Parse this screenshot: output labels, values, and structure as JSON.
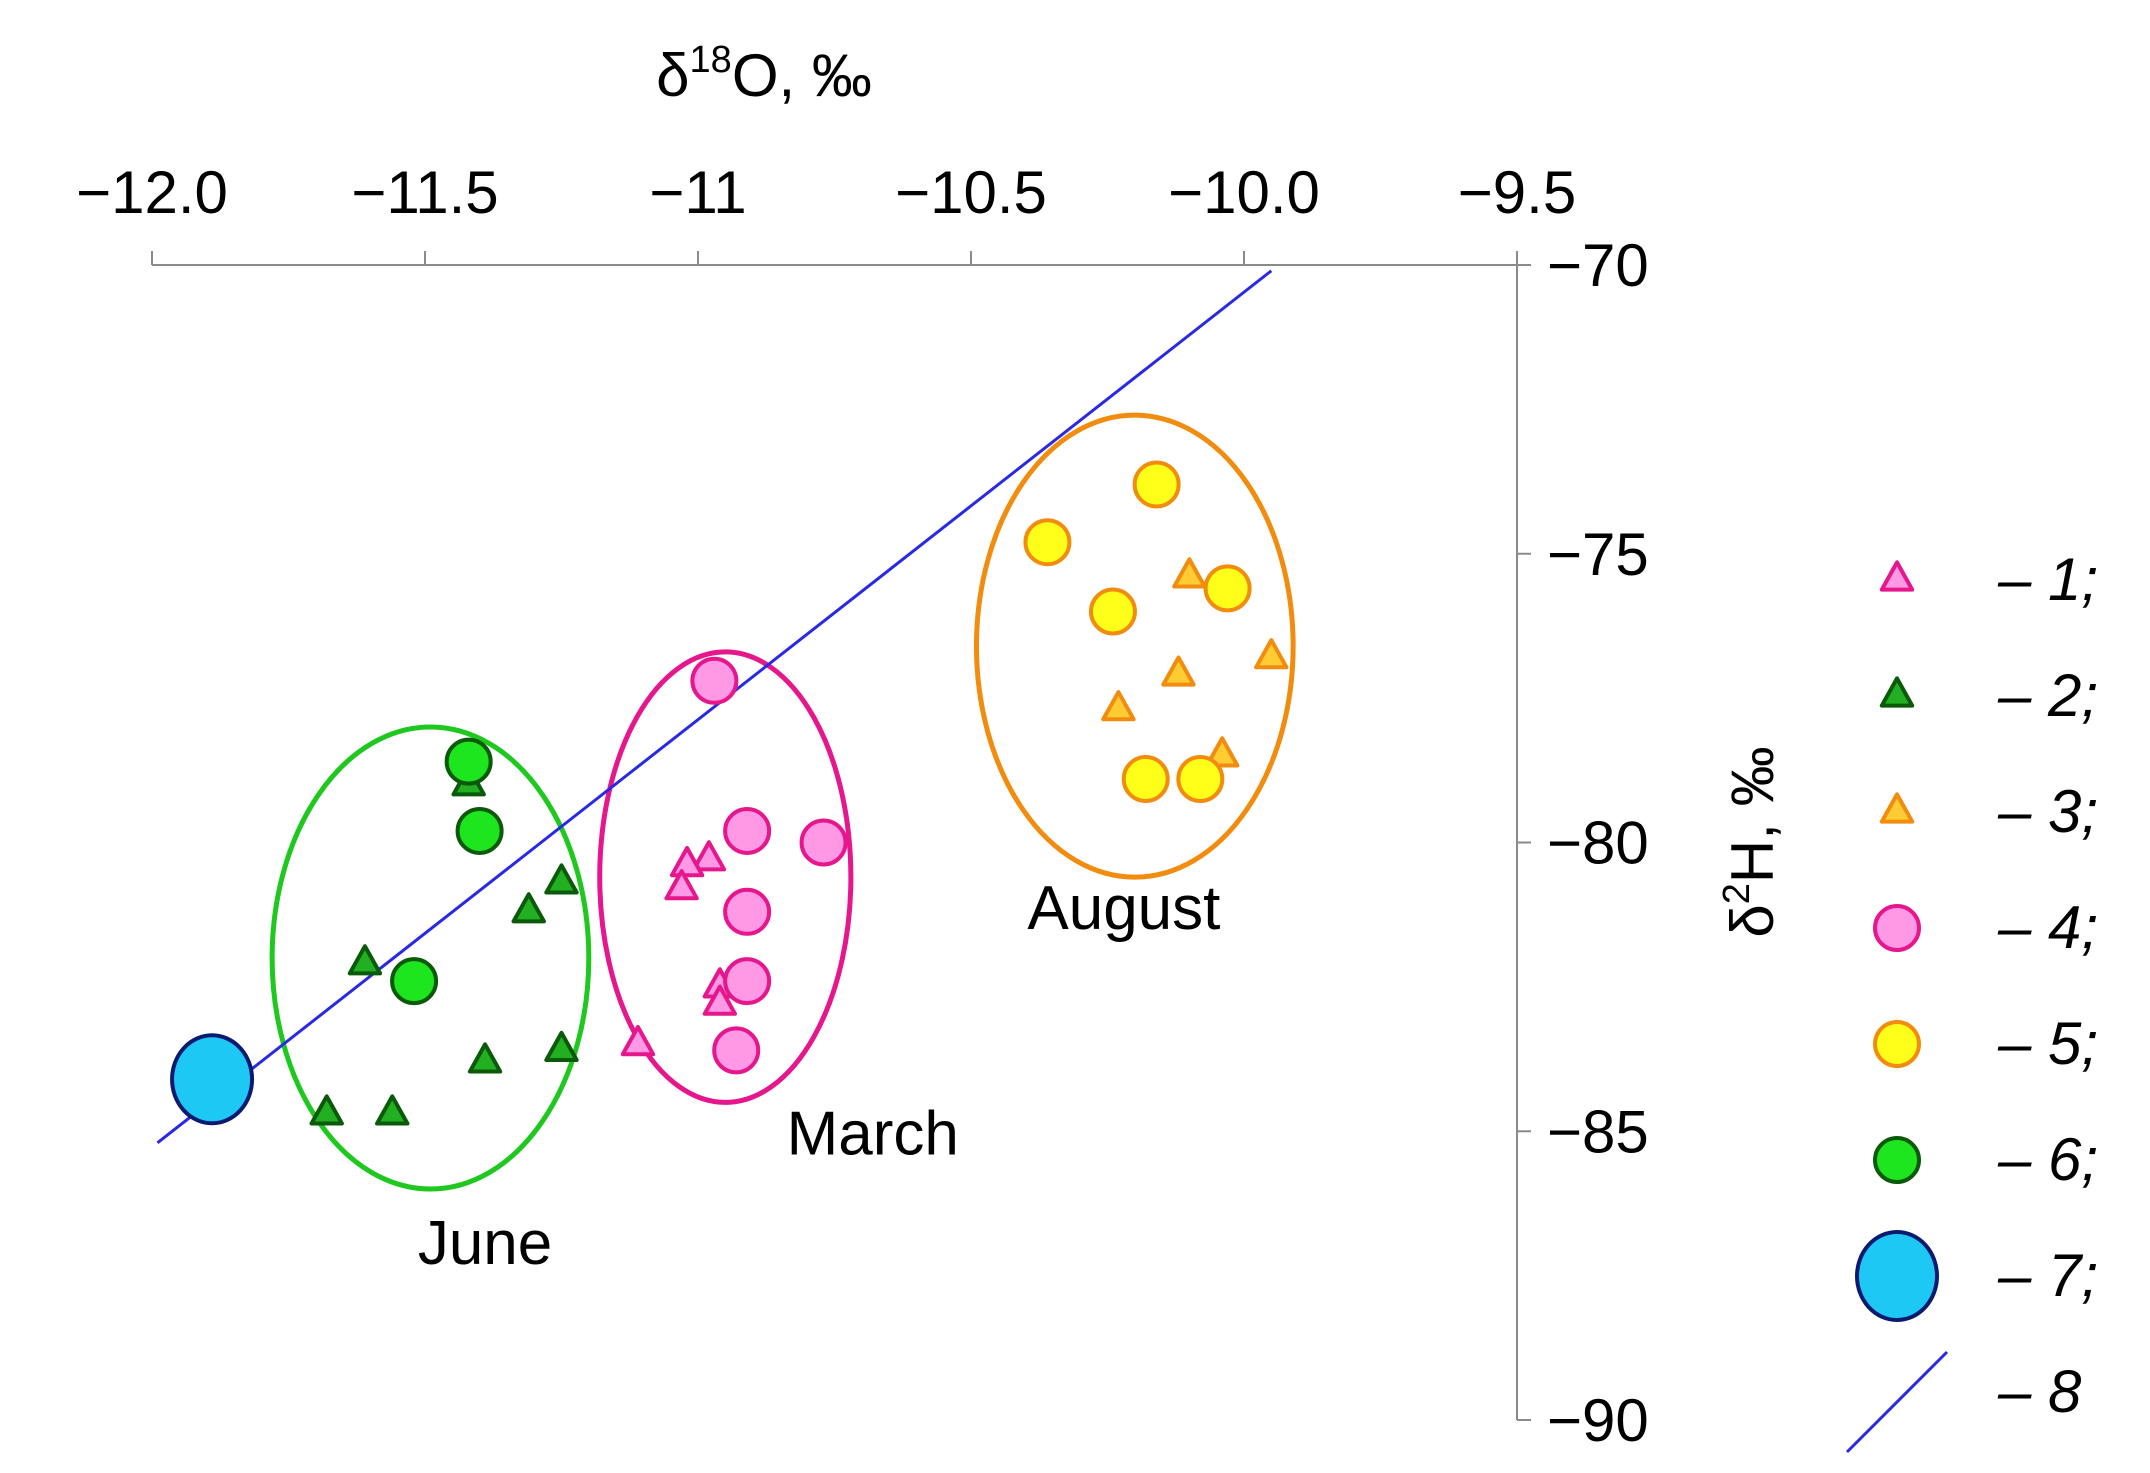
{
  "chart_data": {
    "type": "scatter",
    "xlabel": "δ18O, ‰",
    "xlabel_base": "δ",
    "xlabel_sup": "18",
    "xlabel_tail": "O, ‰",
    "ylabel": "δ2H, ‰",
    "ylabel_base": "δ",
    "ylabel_sup": "2",
    "ylabel_tail": "H, ‰",
    "xlim": [
      -12.0,
      -9.5
    ],
    "ylim": [
      -90,
      -70
    ],
    "x_ticks": [
      -12.0,
      -11.5,
      -11.0,
      -10.5,
      -10.0,
      -9.5
    ],
    "x_tick_labels": [
      "−12.0",
      "−11.5",
      "−11",
      "−10.5",
      "−10.0",
      "−9.5"
    ],
    "y_ticks": [
      -70,
      -75,
      -80,
      -85,
      -90
    ],
    "y_tick_labels": [
      "−70",
      "−75",
      "−80",
      "−85",
      "−90"
    ],
    "x_axis_position": "top",
    "y_axis_position": "right",
    "grid": false,
    "legend_position": "right",
    "series": [
      {
        "name": "1",
        "label": "– 1;",
        "marker": "triangle",
        "fill": "#ff99e6",
        "stroke": "#e6168c",
        "x": [
          -10.98,
          -11.02,
          -11.03,
          -10.96,
          -10.96,
          -11.11
        ],
        "y": [
          -80.3,
          -80.4,
          -80.8,
          -82.5,
          -82.8,
          -83.5
        ]
      },
      {
        "name": "2",
        "label": "– 2;",
        "marker": "triangle",
        "fill": "#22b022",
        "stroke": "#0a5a0a",
        "x": [
          -11.42,
          -11.25,
          -11.31,
          -11.61,
          -11.39,
          -11.25,
          -11.68,
          -11.56
        ],
        "y": [
          -79.0,
          -80.7,
          -81.2,
          -82.1,
          -83.8,
          -83.6,
          -84.7,
          -84.7
        ]
      },
      {
        "name": "3",
        "label": "– 3;",
        "marker": "triangle",
        "fill": "#ffcc33",
        "stroke": "#f28c0f",
        "x": [
          -10.1,
          -9.95,
          -10.12,
          -10.23,
          -10.04
        ],
        "y": [
          -75.4,
          -76.8,
          -77.1,
          -77.7,
          -78.5
        ]
      },
      {
        "name": "4",
        "label": "– 4;",
        "marker": "circle",
        "fill": "#ff99e6",
        "stroke": "#e6168c",
        "x": [
          -10.97,
          -10.91,
          -10.77,
          -10.91,
          -10.91,
          -10.93
        ],
        "y": [
          -77.2,
          -79.8,
          -80.0,
          -81.2,
          -82.4,
          -83.6
        ]
      },
      {
        "name": "5",
        "label": "– 5;",
        "marker": "circle",
        "fill": "#ffff1a",
        "stroke": "#f28c0f",
        "x": [
          -10.16,
          -10.36,
          -10.03,
          -10.24,
          -10.18,
          -10.08
        ],
        "y": [
          -73.8,
          -74.8,
          -75.6,
          -76.0,
          -78.9,
          -78.9
        ]
      },
      {
        "name": "6",
        "label": "– 6;",
        "marker": "circle",
        "fill": "#1ee61e",
        "stroke": "#0a5a0a",
        "x": [
          -11.42,
          -11.4,
          -11.52
        ],
        "y": [
          -78.6,
          -79.8,
          -82.4
        ]
      },
      {
        "name": "7",
        "label": "– 7;",
        "marker": "circle-large",
        "fill": "#1ec8f5",
        "stroke": "#0a1a70",
        "x": [
          -11.89
        ],
        "y": [
          -84.1
        ]
      },
      {
        "name": "8",
        "label": "– 8",
        "marker": "line",
        "stroke": "#2828e6",
        "x": [
          -11.99,
          -9.95
        ],
        "y": [
          -85.2,
          -70.1
        ]
      }
    ],
    "annotations": [
      {
        "text": "June",
        "x": -11.39,
        "y": -87.3,
        "ellipse": {
          "cx": -11.49,
          "cy": -82.0,
          "rx": 0.29,
          "ry": 4.0,
          "color": "#1ec81e"
        }
      },
      {
        "text": "March",
        "x": -10.68,
        "y": -85.4,
        "ellipse": {
          "cx": -10.95,
          "cy": -80.6,
          "rx": 0.23,
          "ry": 3.9,
          "color": "#e6168c"
        }
      },
      {
        "text": "August",
        "x": -10.22,
        "y": -81.5,
        "ellipse": {
          "cx": -10.2,
          "cy": -76.6,
          "rx": 0.29,
          "ry": 4.0,
          "color": "#f28c0f"
        }
      }
    ]
  }
}
